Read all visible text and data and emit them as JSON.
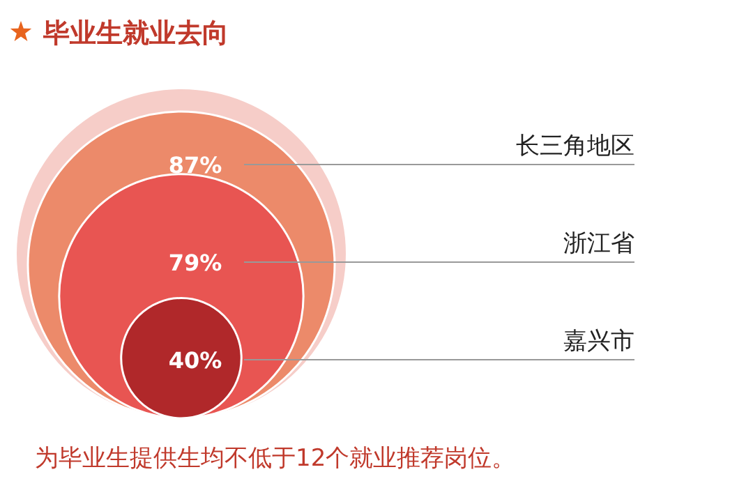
{
  "chart_data": {
    "type": "other",
    "title": "毕业生就业去向",
    "categories": [
      "长三角地区",
      "浙江省",
      "嘉兴市"
    ],
    "values": [
      87,
      79,
      40
    ],
    "value_labels": [
      "87%",
      "79%",
      "40%"
    ],
    "colors": [
      "#ec8a6a",
      "#e85552",
      "#b0282a"
    ],
    "annotations": [
      "为毕业生提供生均不低于12个就业推荐岗位。"
    ]
  }
}
